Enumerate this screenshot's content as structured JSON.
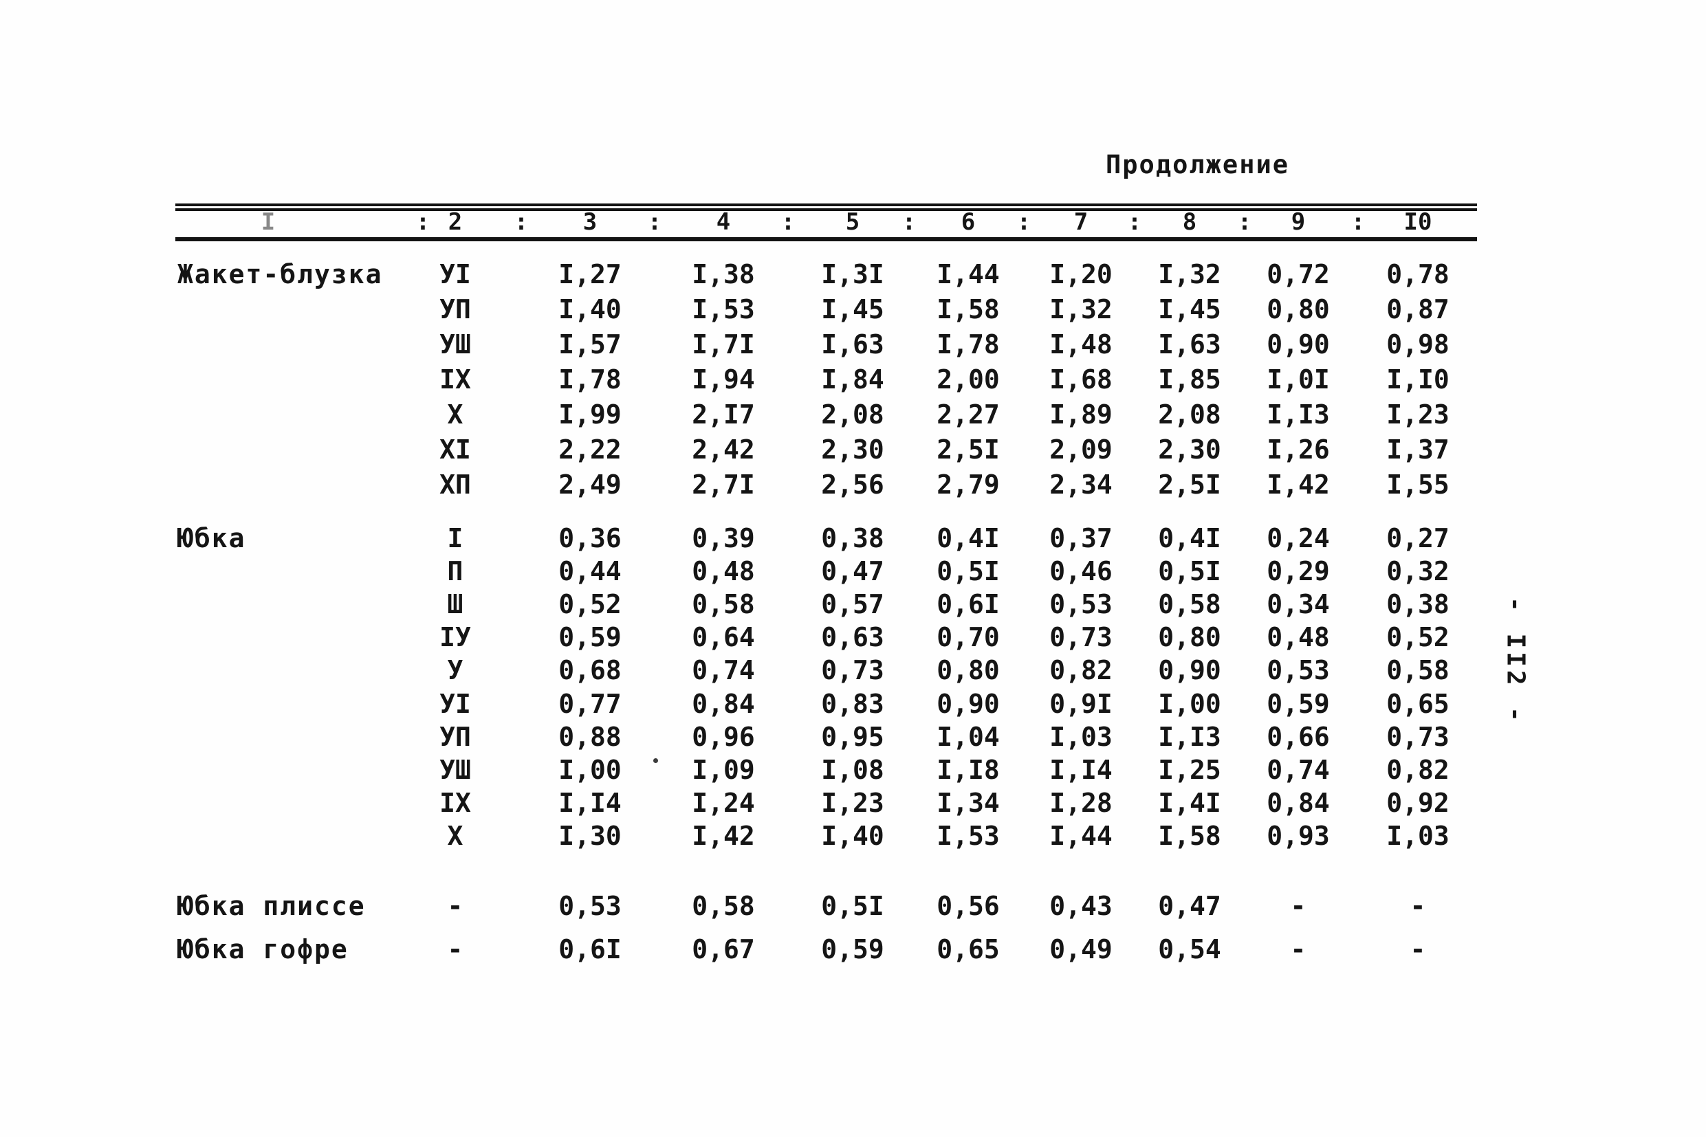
{
  "page": {
    "continuation_label": "Продолжение",
    "page_number": "- II2 -"
  },
  "table": {
    "header_labels": [
      "I",
      "2",
      "3",
      "4",
      "5",
      "6",
      "7",
      "8",
      "9",
      "I0"
    ],
    "header_separator": ":",
    "sections": [
      {
        "label": "Жакет-блузка",
        "rows": [
          {
            "size": "УІ",
            "values": [
              "I,27",
              "I,38",
              "I,3I",
              "I,44",
              "I,20",
              "I,32",
              "0,72",
              "0,78"
            ]
          },
          {
            "size": "УП",
            "values": [
              "I,40",
              "I,53",
              "I,45",
              "I,58",
              "I,32",
              "I,45",
              "0,80",
              "0,87"
            ]
          },
          {
            "size": "УШ",
            "values": [
              "I,57",
              "I,7I",
              "I,63",
              "I,78",
              "I,48",
              "I,63",
              "0,90",
              "0,98"
            ]
          },
          {
            "size": "ІХ",
            "values": [
              "I,78",
              "I,94",
              "I,84",
              "2,00",
              "I,68",
              "I,85",
              "I,0I",
              "I,I0"
            ]
          },
          {
            "size": "Х",
            "values": [
              "I,99",
              "2,I7",
              "2,08",
              "2,27",
              "I,89",
              "2,08",
              "I,I3",
              "I,23"
            ]
          },
          {
            "size": "ХІ",
            "values": [
              "2,22",
              "2,42",
              "2,30",
              "2,5I",
              "2,09",
              "2,30",
              "I,26",
              "I,37"
            ]
          },
          {
            "size": "ХП",
            "values": [
              "2,49",
              "2,7I",
              "2,56",
              "2,79",
              "2,34",
              "2,5I",
              "I,42",
              "I,55"
            ]
          }
        ]
      },
      {
        "label": "Юбка",
        "rows": [
          {
            "size": "І",
            "values": [
              "0,36",
              "0,39",
              "0,38",
              "0,4I",
              "0,37",
              "0,4I",
              "0,24",
              "0,27"
            ]
          },
          {
            "size": "П",
            "values": [
              "0,44",
              "0,48",
              "0,47",
              "0,5I",
              "0,46",
              "0,5I",
              "0,29",
              "0,32"
            ]
          },
          {
            "size": "Ш",
            "values": [
              "0,52",
              "0,58",
              "0,57",
              "0,6I",
              "0,53",
              "0,58",
              "0,34",
              "0,38"
            ]
          },
          {
            "size": "ІУ",
            "values": [
              "0,59",
              "0,64",
              "0,63",
              "0,70",
              "0,73",
              "0,80",
              "0,48",
              "0,52"
            ]
          },
          {
            "size": "У",
            "values": [
              "0,68",
              "0,74",
              "0,73",
              "0,80",
              "0,82",
              "0,90",
              "0,53",
              "0,58"
            ]
          },
          {
            "size": "УІ",
            "values": [
              "0,77",
              "0,84",
              "0,83",
              "0,90",
              "0,9I",
              "I,00",
              "0,59",
              "0,65"
            ]
          },
          {
            "size": "УП",
            "values": [
              "0,88",
              "0,96",
              "0,95",
              "I,04",
              "I,03",
              "I,I3",
              "0,66",
              "0,73"
            ]
          },
          {
            "size": "УШ",
            "values": [
              "I,00",
              "I,09",
              "I,08",
              "I,I8",
              "I,I4",
              "I,25",
              "0,74",
              "0,82"
            ]
          },
          {
            "size": "ІХ",
            "values": [
              "I,I4",
              "I,24",
              "I,23",
              "I,34",
              "I,28",
              "I,4I",
              "0,84",
              "0,92"
            ]
          },
          {
            "size": "Х",
            "values": [
              "I,30",
              "I,42",
              "I,40",
              "I,53",
              "I,44",
              "I,58",
              "0,93",
              "I,03"
            ]
          }
        ]
      },
      {
        "label": "Юбка плиссе",
        "rows": [
          {
            "size": "-",
            "values": [
              "0,53",
              "0,58",
              "0,5I",
              "0,56",
              "0,43",
              "0,47",
              "-",
              "-"
            ]
          }
        ]
      },
      {
        "label": "Юбка гофре",
        "rows": [
          {
            "size": "-",
            "values": [
              "0,6I",
              "0,67",
              "0,59",
              "0,65",
              "0,49",
              "0,54",
              "-",
              "-"
            ]
          }
        ]
      }
    ]
  }
}
